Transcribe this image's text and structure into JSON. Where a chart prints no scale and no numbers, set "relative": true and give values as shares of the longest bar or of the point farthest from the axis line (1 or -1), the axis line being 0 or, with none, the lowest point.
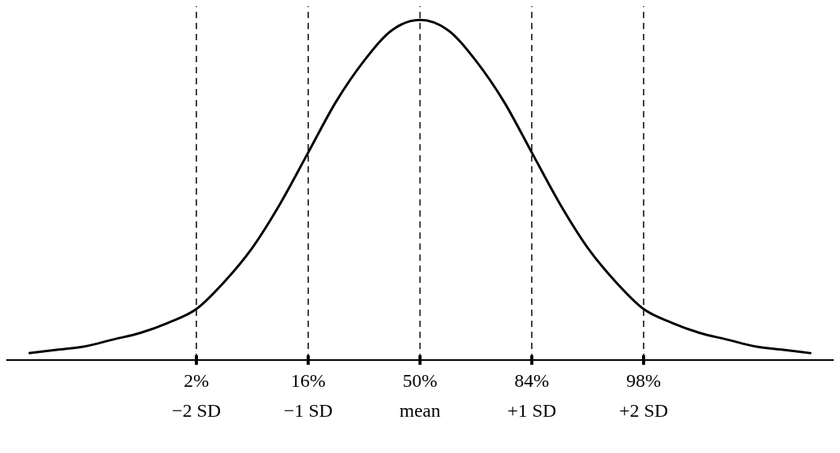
{
  "chart_data": {
    "type": "line",
    "relative": true,
    "color": "#000000",
    "marker": "none",
    "line_style": "solid",
    "grid": false,
    "legend": false,
    "categories": [
      null,
      null,
      null,
      null,
      null,
      null,
      "2%\n−2 SD",
      null,
      null,
      null,
      "16%\n−1 SD",
      null,
      null,
      null,
      "50%\nmean",
      null,
      null,
      null,
      "84%\n+1 SD",
      null,
      null,
      null,
      "98%\n+2 SD",
      null,
      null,
      null,
      null,
      null,
      null
    ],
    "values": [
      0.02,
      0.03,
      0.04,
      0.06,
      0.08,
      0.11,
      0.15,
      0.23,
      0.33,
      0.46,
      0.61,
      0.76,
      0.88,
      0.97,
      1,
      0.97,
      0.88,
      0.76,
      0.61,
      0.46,
      0.33,
      0.23,
      0.15,
      0.11,
      0.08,
      0.06,
      0.04,
      0.03,
      0.02
    ],
    "ref_lines": [
      {
        "axis": "x",
        "value": "2%\n−2 SD",
        "line_style": "dashed",
        "color": "#000000"
      },
      {
        "axis": "x",
        "value": "16%\n−1 SD",
        "line_style": "dashed",
        "color": "#000000"
      },
      {
        "axis": "x",
        "value": "50%\nmean",
        "line_style": "dashed",
        "color": "#000000"
      },
      {
        "axis": "x",
        "value": "84%\n+1 SD",
        "line_style": "dashed",
        "color": "#000000"
      },
      {
        "axis": "x",
        "value": "98%\n+2 SD",
        "line_style": "dashed",
        "color": "#000000"
      }
    ]
  }
}
